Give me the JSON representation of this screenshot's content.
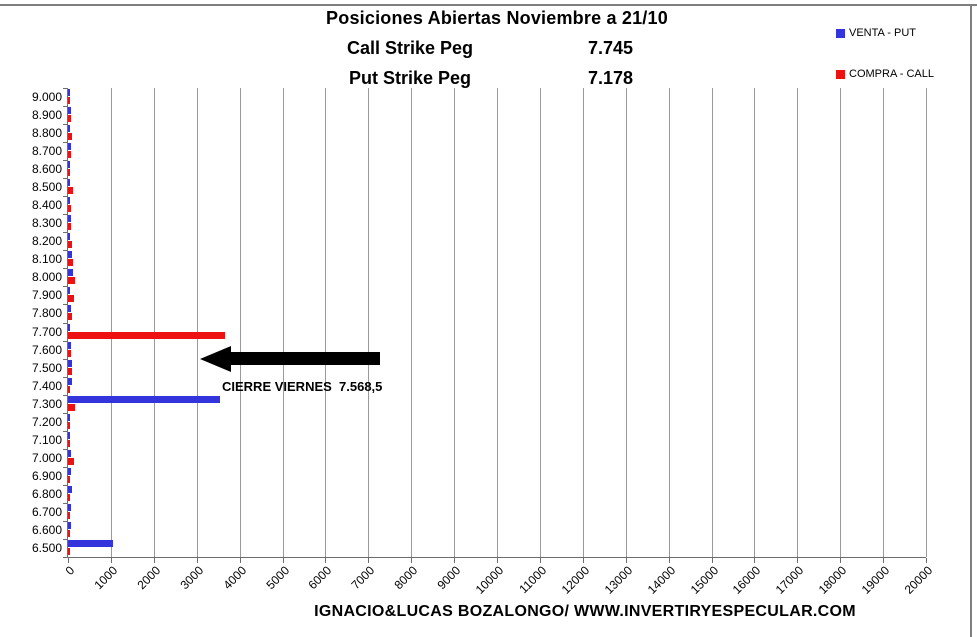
{
  "title": {
    "line1": "Posiciones Abiertas Noviembre a 21/10",
    "call_label": "Call Strike Peg",
    "call_value": "7.745",
    "put_label": "Put Strike Peg",
    "put_value": "7.178"
  },
  "legend": [
    {
      "label": "VENTA - PUT",
      "color": "#3434dd"
    },
    {
      "label": "COMPRA - CALL",
      "color": "#ee1111"
    }
  ],
  "annotation": {
    "text": "CIERRE VIERNES  7.568,5"
  },
  "footer": {
    "text": "IGNACIO&LUCAS BOZALONGO/ WWW.INVERTIRYESPECULAR.COM"
  },
  "colors": {
    "put_blue": "#3434dd",
    "call_red": "#ee1111",
    "gridline": "#9a9a9a",
    "axis": "#6e6e6e",
    "border": "#7f7f7f",
    "arrow": "#000000"
  },
  "chart_data": {
    "type": "bar",
    "orientation": "horizontal",
    "title": "Posiciones Abiertas Noviembre a 21/10",
    "categories": [
      "9.000",
      "8.900",
      "8.800",
      "8.700",
      "8.600",
      "8.500",
      "8.400",
      "8.300",
      "8.200",
      "8.100",
      "8.000",
      "7.900",
      "7.800",
      "7.700",
      "7.600",
      "7.500",
      "7.400",
      "7.300",
      "7.200",
      "7.100",
      "7.000",
      "6.900",
      "6.800",
      "6.700",
      "6.600",
      "6.500"
    ],
    "series": [
      {
        "name": "VENTA - PUT",
        "color": "#3434dd",
        "values": [
          50,
          60,
          40,
          80,
          50,
          30,
          50,
          60,
          50,
          90,
          110,
          40,
          60,
          40,
          70,
          90,
          90,
          3550,
          30,
          50,
          70,
          60,
          90,
          60,
          60,
          1050
        ]
      },
      {
        "name": "COMPRA - CALL",
        "color": "#ee1111",
        "values": [
          30,
          60,
          90,
          80,
          50,
          110,
          80,
          80,
          90,
          110,
          160,
          130,
          100,
          3650,
          60,
          90,
          30,
          160,
          30,
          30,
          150,
          20,
          20,
          10,
          10,
          40
        ]
      }
    ],
    "xlim": [
      0,
      20000
    ],
    "x_ticks": [
      0,
      1000,
      2000,
      3000,
      4000,
      5000,
      6000,
      7000,
      8000,
      9000,
      10000,
      11000,
      12000,
      13000,
      14000,
      15000,
      16000,
      17000,
      18000,
      19000,
      20000
    ],
    "grid": true,
    "legend_position": "top-right",
    "annotations": [
      {
        "text": "CIERRE VIERNES 7.568,5",
        "arrow": "left",
        "near_category": "7.500"
      }
    ]
  }
}
